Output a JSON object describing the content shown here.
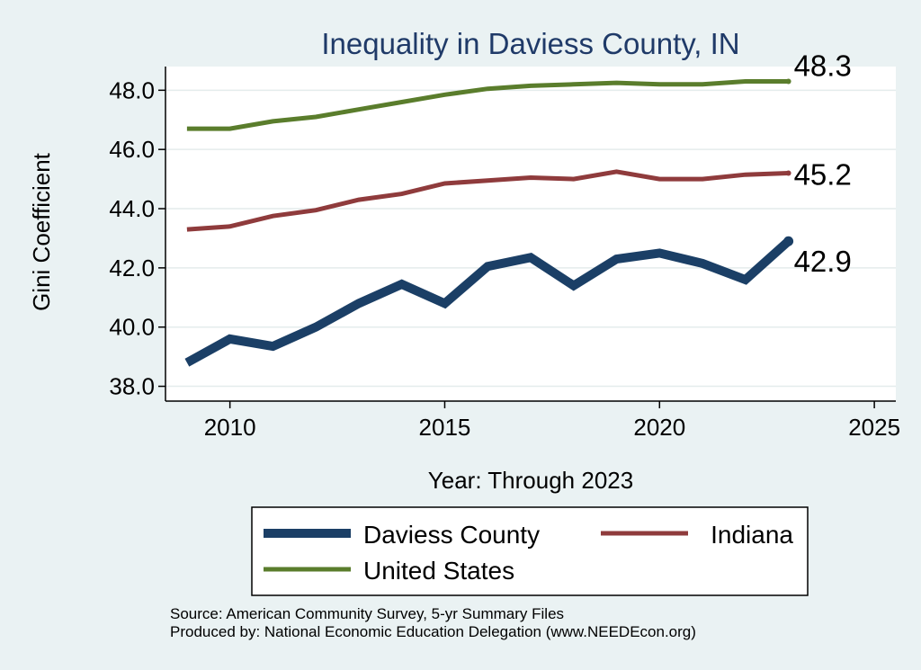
{
  "chart_data": {
    "type": "line",
    "title": "Inequality in Daviess County, IN",
    "xlabel": "Year: Through 2023",
    "ylabel": "Gini Coefficient",
    "xlim": [
      2008.5,
      2025.5
    ],
    "ylim": [
      37.5,
      48.8
    ],
    "x_ticks": [
      2010,
      2015,
      2020,
      2025
    ],
    "y_ticks": [
      38.0,
      40.0,
      42.0,
      44.0,
      46.0,
      48.0
    ],
    "x_tick_labels": [
      "2010",
      "2015",
      "2020",
      "2025"
    ],
    "y_tick_labels": [
      "38.0",
      "40.0",
      "42.0",
      "44.0",
      "46.0",
      "48.0"
    ],
    "grid": "horizontal",
    "x": [
      2009,
      2010,
      2011,
      2012,
      2013,
      2014,
      2015,
      2016,
      2017,
      2018,
      2019,
      2020,
      2021,
      2022,
      2023
    ],
    "series": [
      {
        "name": "Daviess County",
        "color": "#1b3f66",
        "values": [
          38.8,
          39.6,
          39.35,
          40.0,
          40.8,
          41.45,
          40.8,
          42.05,
          42.35,
          41.4,
          42.3,
          42.5,
          42.15,
          41.6,
          42.9
        ],
        "end_label": "42.9"
      },
      {
        "name": "Indiana",
        "color": "#8f3b3c",
        "values": [
          43.3,
          43.4,
          43.75,
          43.95,
          44.3,
          44.5,
          44.85,
          44.95,
          45.05,
          45.0,
          45.25,
          45.0,
          45.0,
          45.15,
          45.2
        ],
        "end_label": "45.2"
      },
      {
        "name": "United States",
        "color": "#5a7d2c",
        "values": [
          46.7,
          46.7,
          46.95,
          47.1,
          47.35,
          47.6,
          47.85,
          48.05,
          48.15,
          48.2,
          48.25,
          48.2,
          48.2,
          48.3,
          48.3
        ],
        "end_label": "48.3"
      }
    ],
    "legend_position": "bottom"
  },
  "footer": {
    "source": "Source: American Community Survey, 5-yr Summary Files",
    "produced_by": "Produced by: National Economic Education Delegation (www.NEEDEcon.org)"
  }
}
